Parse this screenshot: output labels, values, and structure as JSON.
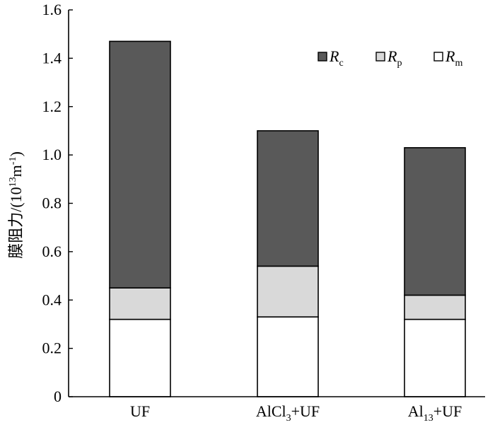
{
  "chart_data": {
    "type": "bar",
    "stacked": true,
    "categories": [
      "UF",
      "AlCl3+UF",
      "Al13+UF"
    ],
    "category_labels": [
      {
        "main": "UF",
        "sub": "",
        "tail": ""
      },
      {
        "main": "AlCl",
        "sub": "3",
        "tail": "+UF"
      },
      {
        "main": "Al",
        "sub": "13",
        "tail": "+UF"
      }
    ],
    "series": [
      {
        "name": "Rm",
        "label_main": "R",
        "label_sub": "m",
        "color": "#ffffff",
        "values": [
          0.32,
          0.33,
          0.32
        ]
      },
      {
        "name": "Rp",
        "label_main": "R",
        "label_sub": "p",
        "color": "#d9d9d9",
        "values": [
          0.13,
          0.21,
          0.1
        ]
      },
      {
        "name": "Rc",
        "label_main": "R",
        "label_sub": "c",
        "color": "#595959",
        "values": [
          1.02,
          0.56,
          0.61
        ]
      }
    ],
    "legend_order": [
      "Rc",
      "Rp",
      "Rm"
    ],
    "legend_position": "top-right",
    "ylabel": "膜阻力/(10¹³m⁻¹)",
    "ylabel_parts": {
      "prefix": "膜阻力/(10",
      "sup1": "13",
      "mid": "m",
      "sup2": "-1",
      "suffix": ")"
    },
    "yticks": [
      "0",
      "0.2",
      "0.4",
      "0.6",
      "0.8",
      "1.0",
      "1.2",
      "1.4",
      "1.6"
    ],
    "ylim": [
      0,
      1.6
    ],
    "grid": false
  }
}
